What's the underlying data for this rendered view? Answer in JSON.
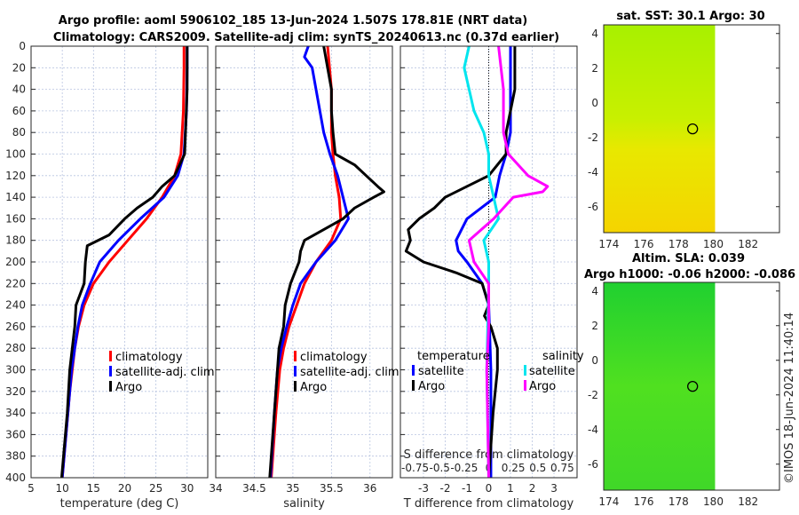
{
  "title_line1": "Argo profile: aoml 5906102_185 13-Jun-2024 1.507S 178.81E (NRT data)",
  "title_line2": "Climatology: CARS2009. Satellite-adj clim: synTS_20240613.nc (0.37d earlier)",
  "timestamp": "©IMOS 18-Jun-2024 11:40:14",
  "colors": {
    "climatology": "#ff0000",
    "satellite": "#0000ff",
    "argo": "#000000",
    "sat_salinity": "#00e5ee",
    "argo_salinity": "#ff00ff"
  },
  "chart_data": [
    {
      "type": "line",
      "name": "temperature",
      "xlabel": "temperature (deg C)",
      "xlim": [
        5,
        33.3
      ],
      "ylim": [
        0,
        400
      ],
      "xticks": [
        5,
        10,
        15,
        20,
        25,
        30
      ],
      "yticks": [
        0,
        20,
        40,
        60,
        80,
        100,
        120,
        140,
        160,
        180,
        200,
        220,
        240,
        260,
        280,
        300,
        320,
        340,
        360,
        380,
        400
      ],
      "grid": true,
      "legend": [
        "climatology",
        "satellite-adj. clim",
        "Argo"
      ],
      "series": [
        {
          "name": "climatology",
          "color": "#ff0000",
          "depth": [
            0,
            20,
            60,
            100,
            120,
            140,
            160,
            180,
            200,
            220,
            240,
            260,
            280,
            300,
            320,
            340,
            360,
            380,
            400
          ],
          "values": [
            29.5,
            29.5,
            29.4,
            29,
            28,
            26,
            23.5,
            20.5,
            17.5,
            15,
            13.5,
            12.6,
            12,
            11.6,
            11.2,
            10.9,
            10.6,
            10.3,
            10
          ]
        },
        {
          "name": "satellite-adj. clim",
          "color": "#0000ff",
          "depth": [
            0,
            20,
            60,
            100,
            120,
            140,
            160,
            180,
            200,
            220,
            240,
            260,
            280,
            300,
            340,
            400
          ],
          "values": [
            30,
            30,
            29.9,
            29.5,
            28.5,
            26.3,
            22.5,
            19,
            16,
            14.5,
            13.2,
            12.5,
            12,
            11.5,
            10.9,
            10
          ]
        },
        {
          "name": "Argo",
          "color": "#000000",
          "depth": [
            0,
            40,
            100,
            120,
            130,
            140,
            150,
            160,
            175,
            185,
            200,
            220,
            240,
            260,
            280,
            300,
            340,
            400
          ],
          "values": [
            30,
            30,
            29.6,
            28,
            26,
            24.5,
            22,
            20,
            17.5,
            14,
            13.7,
            13.5,
            12.2,
            12,
            11.6,
            11.2,
            10.8,
            9.9
          ]
        }
      ]
    },
    {
      "type": "line",
      "name": "salinity",
      "xlabel": "salinity",
      "xlim": [
        34,
        36.29
      ],
      "ylim": [
        0,
        400
      ],
      "xticks": [
        34,
        34.5,
        35,
        35.5,
        36
      ],
      "grid": true,
      "legend": [
        "climatology",
        "satellite-adj. clim",
        "Argo"
      ],
      "series": [
        {
          "name": "climatology",
          "color": "#ff0000",
          "depth": [
            0,
            40,
            80,
            100,
            120,
            140,
            160,
            180,
            200,
            220,
            240,
            260,
            280,
            300,
            340,
            400
          ],
          "values": [
            35.45,
            35.5,
            35.5,
            35.52,
            35.55,
            35.6,
            35.62,
            35.5,
            35.3,
            35.15,
            35.05,
            34.95,
            34.88,
            34.83,
            34.78,
            34.72
          ]
        },
        {
          "name": "satellite-adj. clim",
          "color": "#0000ff",
          "depth": [
            0,
            10,
            20,
            40,
            60,
            80,
            100,
            120,
            140,
            160,
            180,
            200,
            220,
            240,
            260,
            280,
            300,
            340,
            400
          ],
          "values": [
            35.2,
            35.15,
            35.25,
            35.3,
            35.35,
            35.4,
            35.48,
            35.58,
            35.65,
            35.72,
            35.55,
            35.3,
            35.1,
            35,
            34.92,
            34.85,
            34.8,
            34.76,
            34.71
          ]
        },
        {
          "name": "Argo",
          "color": "#000000",
          "depth": [
            0,
            20,
            40,
            60,
            80,
            100,
            110,
            120,
            130,
            135,
            140,
            150,
            160,
            170,
            180,
            190,
            200,
            220,
            240,
            260,
            280,
            300,
            340,
            400
          ],
          "values": [
            35.4,
            35.45,
            35.5,
            35.5,
            35.52,
            35.55,
            35.8,
            35.95,
            36.1,
            36.18,
            36.05,
            35.8,
            35.65,
            35.4,
            35.15,
            35.1,
            35.08,
            34.97,
            34.9,
            34.88,
            34.82,
            34.8,
            34.76,
            34.7
          ]
        }
      ]
    },
    {
      "type": "line",
      "name": "difference",
      "xlabel": "T difference from climatology",
      "x2label": "S difference from climatology",
      "xlim": [
        -4.06,
        4.06
      ],
      "x2lim": [
        -0.9,
        0.9
      ],
      "ylim": [
        0,
        400
      ],
      "xticks": [
        -3,
        -2,
        -1,
        0,
        1,
        2,
        3
      ],
      "x2ticks": [
        "-0.75",
        "-0.5",
        "-0.25",
        "0",
        "0.25",
        "0.5",
        "0.75"
      ],
      "grid": true,
      "legend_headers": [
        "temperature",
        "salinity"
      ],
      "legend_temperature": [
        "satellite",
        "Argo"
      ],
      "legend_salinity": [
        "satellite",
        "Argo"
      ],
      "series": [
        {
          "name": "T satellite",
          "axis": "T",
          "color": "#0000ff",
          "depth": [
            0,
            40,
            80,
            100,
            120,
            140,
            160,
            180,
            190,
            200,
            220,
            240,
            300,
            400
          ],
          "values": [
            1,
            1,
            1,
            0.8,
            0.5,
            0.3,
            -1,
            -1.5,
            -1.4,
            -1,
            -0.3,
            0,
            0.1,
            0.1
          ]
        },
        {
          "name": "T Argo",
          "axis": "T",
          "color": "#000000",
          "depth": [
            0,
            40,
            80,
            100,
            120,
            130,
            140,
            150,
            160,
            170,
            180,
            190,
            200,
            210,
            220,
            240,
            250,
            260,
            280,
            300,
            340,
            400
          ],
          "values": [
            1.2,
            1.2,
            0.8,
            0.8,
            0,
            -1,
            -2,
            -2.5,
            -3.2,
            -3.7,
            -3.6,
            -3.8,
            -3,
            -1.5,
            -0.3,
            0,
            -0.2,
            0.1,
            0.4,
            0.4,
            0.2,
            0
          ]
        },
        {
          "name": "S satellite",
          "axis": "S",
          "color": "#00e5ee",
          "depth": [
            0,
            20,
            60,
            80,
            100,
            120,
            140,
            160,
            180,
            200,
            220,
            300,
            400
          ],
          "values": [
            -0.2,
            -0.25,
            -0.15,
            -0.05,
            0,
            0,
            0.05,
            0.1,
            -0.05,
            0,
            0,
            -0.02,
            0
          ]
        },
        {
          "name": "S Argo",
          "axis": "S",
          "color": "#ff00ff",
          "depth": [
            0,
            40,
            80,
            100,
            120,
            130,
            135,
            140,
            150,
            160,
            180,
            200,
            220,
            260,
            300,
            400
          ],
          "values": [
            0.1,
            0.15,
            0.15,
            0.2,
            0.4,
            0.6,
            0.55,
            0.25,
            0.15,
            0.05,
            -0.2,
            -0.15,
            0,
            0,
            -0.02,
            0
          ]
        }
      ]
    },
    {
      "type": "heatmap",
      "name": "sst-map",
      "title": "sat. SST: 30.1 Argo: 30",
      "xlim": [
        173.7,
        183.8
      ],
      "ylim": [
        -7.5,
        4.5
      ],
      "xticks": [
        174,
        176,
        178,
        180,
        182
      ],
      "yticks": [
        4,
        2,
        0,
        -2,
        -4,
        -6
      ],
      "argo_position": [
        178.81,
        -1.507
      ]
    },
    {
      "type": "heatmap",
      "name": "sla-map",
      "title_line1": "Altim. SLA: 0.039",
      "title_line2": "Argo h1000: -0.06 h2000: -0.086",
      "xlim": [
        173.7,
        183.8
      ],
      "ylim": [
        -7.5,
        4.5
      ],
      "xticks": [
        174,
        176,
        178,
        180,
        182
      ],
      "yticks": [
        4,
        2,
        0,
        -2,
        -4,
        -6
      ],
      "argo_position": [
        178.81,
        -1.507
      ]
    }
  ]
}
